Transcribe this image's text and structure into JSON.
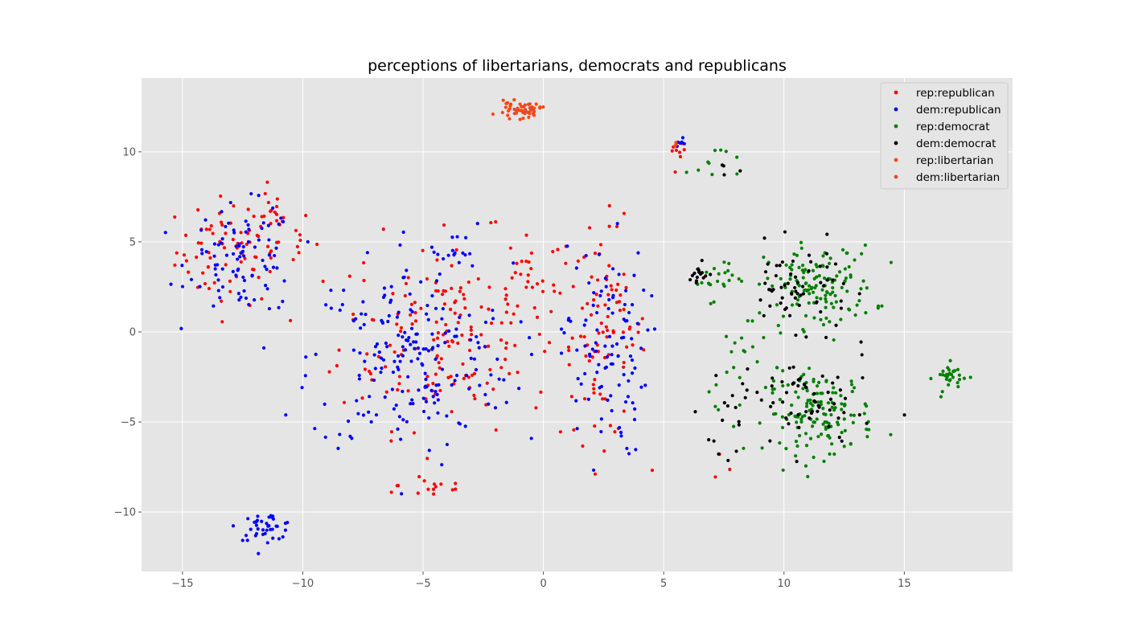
{
  "chart_data": {
    "type": "scatter",
    "title": "perceptions of libertarians, democrats and republicans",
    "xlabel": "",
    "ylabel": "",
    "xlim": [
      -16.7,
      19.5
    ],
    "ylim": [
      -13.3,
      14.1
    ],
    "xticks": [
      -15,
      -10,
      -5,
      0,
      5,
      10,
      15
    ],
    "xtick_labels": [
      "−15",
      "−10",
      "−5",
      "0",
      "5",
      "10",
      "15"
    ],
    "yticks": [
      -10,
      -5,
      0,
      5,
      10
    ],
    "ytick_labels": [
      "−10",
      "−5",
      "0",
      "5",
      "10"
    ],
    "grid": true,
    "legend_position": "top-right",
    "legend": [
      "rep:republican",
      "dem:republican",
      "rep:democrat",
      "dem:democrat",
      "rep:libertarian",
      "dem:libertarian"
    ],
    "series": [
      {
        "name": "rep:republican",
        "color": "#ff0000",
        "clusters": [
          {
            "center": [
              -13,
              4.5
            ],
            "spread": [
              1.5,
              2.0
            ],
            "n": 70
          },
          {
            "center": [
              -11,
              5.5
            ],
            "spread": [
              1.0,
              1.5
            ],
            "n": 25
          },
          {
            "center": [
              -4,
              0
            ],
            "spread": [
              3.0,
              3.5
            ],
            "n": 170
          },
          {
            "center": [
              2.5,
              0
            ],
            "spread": [
              1.2,
              4.0
            ],
            "n": 90
          },
          {
            "center": [
              -4.5,
              -8.5
            ],
            "spread": [
              1.0,
              0.6
            ],
            "n": 15
          },
          {
            "center": [
              -0.5,
              3.0
            ],
            "spread": [
              1.2,
              1.5
            ],
            "n": 20
          },
          {
            "center": [
              5.5,
              9.5
            ],
            "spread": [
              0.3,
              1.0
            ],
            "n": 8
          },
          {
            "center": [
              7.5,
              -7.5
            ],
            "spread": [
              0.5,
              0.5
            ],
            "n": 3
          }
        ]
      },
      {
        "name": "dem:republican",
        "color": "#0000ff",
        "clusters": [
          {
            "center": [
              -12.5,
              4.0
            ],
            "spread": [
              1.5,
              2.0
            ],
            "n": 90
          },
          {
            "center": [
              -11.5,
              -10.8
            ],
            "spread": [
              0.8,
              0.5
            ],
            "n": 40
          },
          {
            "center": [
              -5.5,
              -1.5
            ],
            "spread": [
              2.8,
              3.5
            ],
            "n": 200
          },
          {
            "center": [
              2.5,
              -1.0
            ],
            "spread": [
              1.2,
              4.0
            ],
            "n": 100
          },
          {
            "center": [
              -4.0,
              4.5
            ],
            "spread": [
              1.2,
              1.0
            ],
            "n": 20
          },
          {
            "center": [
              5.7,
              10.3
            ],
            "spread": [
              0.15,
              0.3
            ],
            "n": 6
          }
        ]
      },
      {
        "name": "rep:democrat",
        "color": "#008000",
        "clusters": [
          {
            "center": [
              11.5,
              2.5
            ],
            "spread": [
              1.5,
              1.5
            ],
            "n": 130
          },
          {
            "center": [
              11.5,
              -4.5
            ],
            "spread": [
              1.5,
              1.5
            ],
            "n": 140
          },
          {
            "center": [
              17.0,
              -2.5
            ],
            "spread": [
              0.5,
              0.5
            ],
            "n": 30
          },
          {
            "center": [
              7.0,
              3.0
            ],
            "spread": [
              0.6,
              0.8
            ],
            "n": 20
          },
          {
            "center": [
              7.0,
              9.5
            ],
            "spread": [
              0.7,
              0.7
            ],
            "n": 10
          },
          {
            "center": [
              8.5,
              -2.5
            ],
            "spread": [
              1.2,
              3.0
            ],
            "n": 25
          }
        ]
      },
      {
        "name": "dem:democrat",
        "color": "#000000",
        "clusters": [
          {
            "center": [
              10.5,
              2.5
            ],
            "spread": [
              1.5,
              1.5
            ],
            "n": 60
          },
          {
            "center": [
              11.0,
              -4.0
            ],
            "spread": [
              1.8,
              2.0
            ],
            "n": 60
          },
          {
            "center": [
              6.5,
              3.0
            ],
            "spread": [
              0.4,
              0.5
            ],
            "n": 15
          },
          {
            "center": [
              7.5,
              9.0
            ],
            "spread": [
              0.4,
              0.4
            ],
            "n": 4
          },
          {
            "center": [
              8.0,
              -4.0
            ],
            "spread": [
              1.0,
              3.0
            ],
            "n": 15
          }
        ]
      },
      {
        "name": "rep:libertarian",
        "color": "#ff4500",
        "clusters": [
          {
            "center": [
              -1.0,
              12.3
            ],
            "spread": [
              0.6,
              0.3
            ],
            "n": 35
          },
          {
            "center": [
              5.5,
              10.5
            ],
            "spread": [
              0.3,
              0.2
            ],
            "n": 3
          }
        ]
      },
      {
        "name": "dem:libertarian",
        "color": "#e24a33",
        "clusters": [
          {
            "center": [
              -0.7,
              12.4
            ],
            "spread": [
              0.5,
              0.25
            ],
            "n": 15
          }
        ]
      }
    ]
  }
}
